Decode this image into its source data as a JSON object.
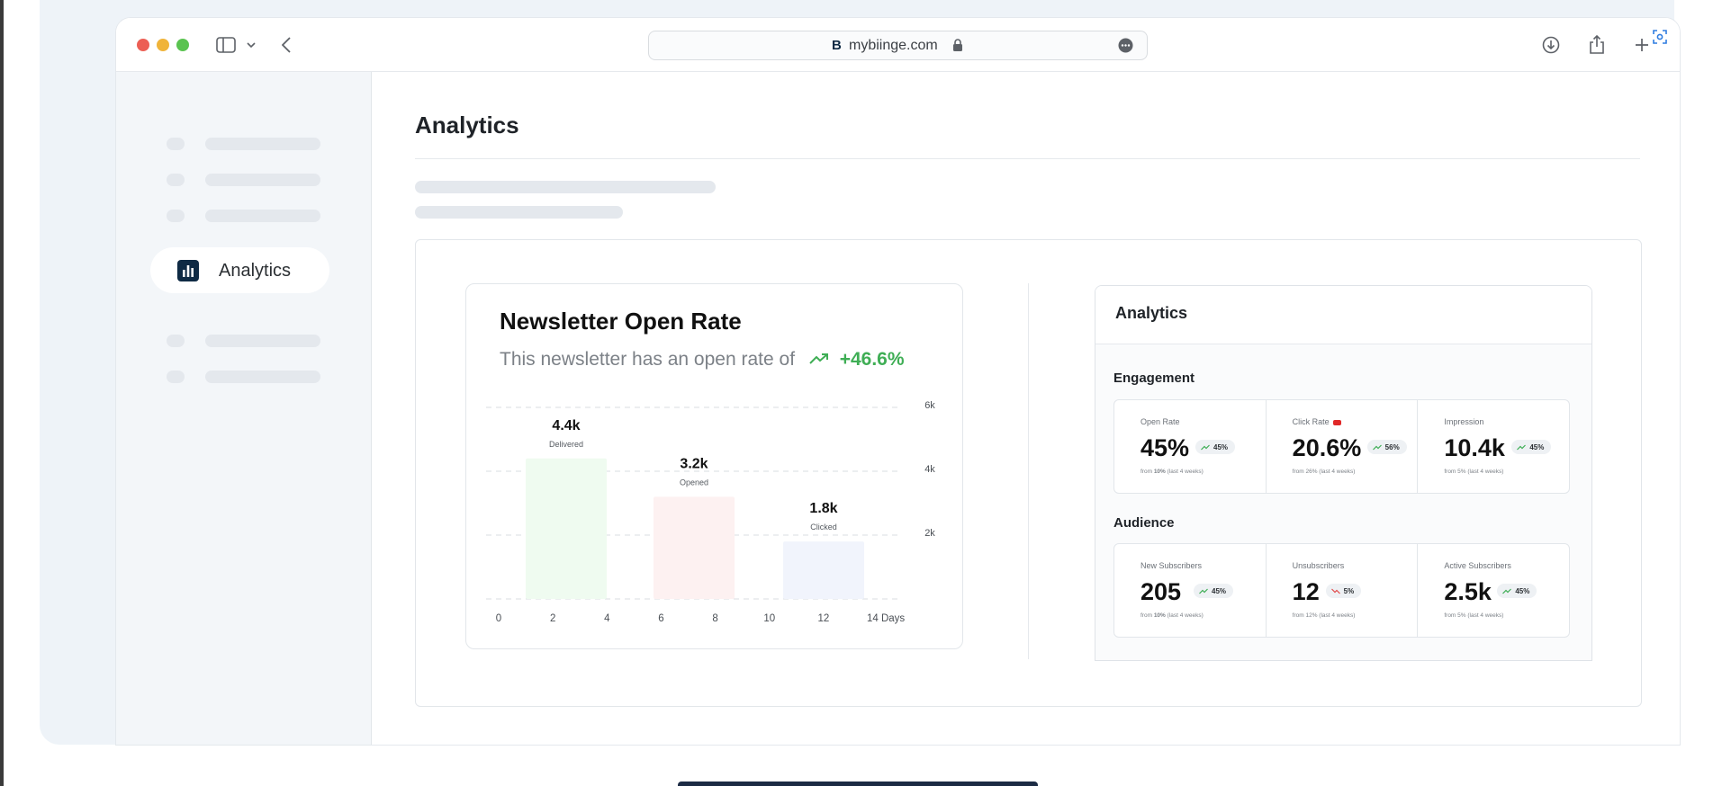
{
  "browser": {
    "url": "mybiinge.com",
    "favicon_letter": "B",
    "icons": [
      "sidebar-toggle-icon",
      "chevron-down-icon",
      "back-icon",
      "lock-icon",
      "more-icon",
      "download-icon",
      "share-icon",
      "plus-icon",
      "screenshot-icon"
    ]
  },
  "sidebar": {
    "active_item": {
      "label": "Analytics",
      "icon": "bar-chart-icon"
    }
  },
  "page": {
    "title": "Analytics"
  },
  "open_rate_card": {
    "title": "Newsletter Open Rate",
    "subtitle": "This newsletter has an open rate of",
    "trend_value": "+46.6%",
    "trend_icon": "trending-up-icon",
    "accent_color": "#3fae55"
  },
  "chart_data": {
    "type": "bar",
    "categories": [
      "Delivered",
      "Opened",
      "Clicked"
    ],
    "values": [
      4400,
      3200,
      1800
    ],
    "value_labels": [
      "4.4k",
      "3.2k",
      "1.8k"
    ],
    "bar_colors": [
      "#effbf0",
      "#fdf1f1",
      "#f1f4fc"
    ],
    "x_ticks": [
      "0",
      "2",
      "4",
      "6",
      "8",
      "10",
      "12",
      "14 Days"
    ],
    "y_ticks": [
      "6k",
      "4k",
      "2k"
    ],
    "ylim": [
      0,
      6000
    ],
    "grid": true
  },
  "analytics_panel": {
    "title": "Analytics",
    "sections": [
      {
        "title": "Engagement",
        "metrics": [
          {
            "label": "Open Rate",
            "value": "45%",
            "badge": "45%",
            "trend": "up",
            "foot_prefix": "from ",
            "foot_bold": "10%",
            "foot_suffix": " (last 4 weeks)"
          },
          {
            "label": "Click Rate",
            "value": "20.6%",
            "badge": "56%",
            "trend": "up",
            "foot_prefix": "from 26% (last 4 weeks)",
            "foot_bold": "",
            "foot_suffix": "",
            "label_icon": "youtube-icon"
          },
          {
            "label": "Impression",
            "value": "10.4k",
            "badge": "45%",
            "trend": "up",
            "foot_prefix": "from 5% (last 4 weeks)",
            "foot_bold": "",
            "foot_suffix": ""
          }
        ]
      },
      {
        "title": "Audience",
        "metrics": [
          {
            "label": "New Subscribers",
            "value": "205",
            "badge": "45%",
            "trend": "up",
            "foot_prefix": "from ",
            "foot_bold": "10%",
            "foot_suffix": " (last 4 weeks)"
          },
          {
            "label": "Unsubscribers",
            "value": "12",
            "badge": "5%",
            "trend": "down",
            "foot_prefix": "from 12% (last 4 weeks)",
            "foot_bold": "",
            "foot_suffix": ""
          },
          {
            "label": "Active Subscribers",
            "value": "2.5k",
            "badge": "45%",
            "trend": "up",
            "foot_prefix": "from 5% (last 4 weeks)",
            "foot_bold": "",
            "foot_suffix": ""
          }
        ]
      }
    ]
  },
  "colors": {
    "up": "#3fae55",
    "down": "#e24b4b",
    "brand": "#0f2a44"
  }
}
